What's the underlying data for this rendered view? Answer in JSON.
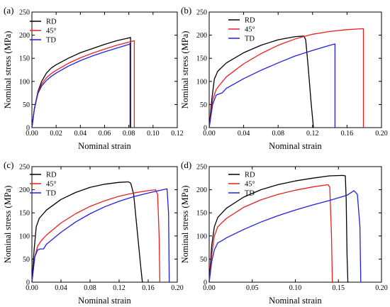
{
  "colors": {
    "RD": "#000000",
    "45°": "#e8201f",
    "TD": "#1f1fe8"
  },
  "chart_data": [
    {
      "panel": "(a)",
      "type": "line",
      "xlabel": "Nominal strain",
      "ylabel": "Nominal stress (MPa)",
      "xlim": [
        0,
        0.12
      ],
      "ylim": [
        0,
        250
      ],
      "xticks": [
        "0.00",
        "0.02",
        "0.04",
        "0.06",
        "0.08",
        "0.10",
        "0.12"
      ],
      "yticks": [
        "0",
        "50",
        "100",
        "150",
        "200",
        "250"
      ],
      "legend": "top-left",
      "series": [
        {
          "name": "RD",
          "color": "#000000",
          "x": [
            0,
            0.002,
            0.005,
            0.008,
            0.012,
            0.016,
            0.02,
            0.03,
            0.04,
            0.05,
            0.06,
            0.07,
            0.08,
            0.0815,
            0.0815
          ],
          "y": [
            0,
            40,
            78,
            100,
            118,
            129,
            136,
            150,
            162,
            171,
            180,
            188,
            194,
            195,
            0
          ]
        },
        {
          "name": "45°",
          "color": "#e8201f",
          "x": [
            0,
            0.002,
            0.005,
            0.008,
            0.012,
            0.016,
            0.02,
            0.03,
            0.04,
            0.05,
            0.06,
            0.07,
            0.08,
            0.0845,
            0.0845
          ],
          "y": [
            0,
            40,
            76,
            94,
            108,
            117,
            124,
            139,
            151,
            161,
            170,
            178,
            185,
            188,
            0
          ]
        },
        {
          "name": "TD",
          "color": "#1f1fe8",
          "x": [
            0,
            0.002,
            0.005,
            0.008,
            0.012,
            0.016,
            0.02,
            0.03,
            0.04,
            0.05,
            0.06,
            0.07,
            0.08,
            0.081,
            0.081
          ],
          "y": [
            0,
            40,
            74,
            90,
            102,
            111,
            118,
            133,
            145,
            155,
            164,
            172,
            180,
            182,
            0
          ]
        }
      ]
    },
    {
      "panel": "(b)",
      "type": "line",
      "xlabel": "Nominal strain",
      "ylabel": "Nominal stress (MPa)",
      "xlim": [
        0,
        0.2
      ],
      "ylim": [
        0,
        250
      ],
      "xticks": [
        "0.00",
        "0.04",
        "0.08",
        "0.12",
        "0.16",
        "0.20"
      ],
      "yticks": [
        "0",
        "50",
        "100",
        "150",
        "200",
        "250"
      ],
      "legend": "top-right",
      "series": [
        {
          "name": "RD",
          "color": "#000000",
          "x": [
            0,
            0.003,
            0.006,
            0.01,
            0.02,
            0.04,
            0.06,
            0.08,
            0.1,
            0.11,
            0.112,
            0.115,
            0.118,
            0.12,
            0.121
          ],
          "y": [
            0,
            60,
            105,
            122,
            140,
            162,
            178,
            190,
            197,
            198,
            190,
            130,
            60,
            20,
            0
          ]
        },
        {
          "name": "45°",
          "color": "#e8201f",
          "x": [
            0,
            0.004,
            0.008,
            0.012,
            0.02,
            0.04,
            0.06,
            0.08,
            0.1,
            0.12,
            0.14,
            0.16,
            0.178,
            0.179,
            0.179
          ],
          "y": [
            0,
            60,
            82,
            92,
            110,
            138,
            160,
            178,
            192,
            202,
            208,
            212,
            214,
            214,
            0
          ]
        },
        {
          "name": "TD",
          "color": "#1f1fe8",
          "x": [
            0,
            0.004,
            0.008,
            0.01,
            0.015,
            0.02,
            0.04,
            0.06,
            0.08,
            0.1,
            0.12,
            0.14,
            0.146,
            0.146
          ],
          "y": [
            0,
            50,
            70,
            72,
            75,
            85,
            106,
            124,
            140,
            155,
            167,
            178,
            181,
            0
          ]
        }
      ]
    },
    {
      "panel": "(c)",
      "type": "line",
      "xlabel": "Nominal strain",
      "ylabel": "Nominal stress (MPa)",
      "xlim": [
        0,
        0.2
      ],
      "ylim": [
        0,
        250
      ],
      "xticks": [
        "0.00",
        "0.04",
        "0.08",
        "0.12",
        "0.16",
        "0.20"
      ],
      "yticks": [
        "0",
        "50",
        "100",
        "150",
        "200",
        "250"
      ],
      "legend": "top-left",
      "series": [
        {
          "name": "RD",
          "color": "#000000",
          "x": [
            0,
            0.003,
            0.006,
            0.01,
            0.02,
            0.04,
            0.06,
            0.08,
            0.1,
            0.12,
            0.133,
            0.136,
            0.14,
            0.145,
            0.15,
            0.152
          ],
          "y": [
            0,
            70,
            120,
            138,
            156,
            179,
            194,
            205,
            212,
            216,
            217,
            214,
            190,
            110,
            30,
            0
          ]
        },
        {
          "name": "45°",
          "color": "#e8201f",
          "x": [
            0,
            0.004,
            0.008,
            0.012,
            0.02,
            0.04,
            0.06,
            0.08,
            0.1,
            0.12,
            0.14,
            0.16,
            0.17,
            0.173,
            0.175,
            0.176
          ],
          "y": [
            0,
            55,
            78,
            88,
            102,
            128,
            148,
            164,
            176,
            186,
            193,
            198,
            200,
            190,
            100,
            0
          ]
        },
        {
          "name": "TD",
          "color": "#1f1fe8",
          "x": [
            0,
            0.004,
            0.008,
            0.012,
            0.016,
            0.02,
            0.04,
            0.06,
            0.08,
            0.1,
            0.12,
            0.14,
            0.16,
            0.18,
            0.186,
            0.188,
            0.189
          ],
          "y": [
            0,
            55,
            70,
            72,
            72,
            82,
            108,
            130,
            148,
            163,
            175,
            185,
            193,
            200,
            202,
            150,
            0
          ]
        }
      ]
    },
    {
      "panel": "(d)",
      "type": "line",
      "xlabel": "Nominal strain",
      "ylabel": "Nominal stress (MPa)",
      "xlim": [
        0,
        0.2
      ],
      "ylim": [
        0,
        250
      ],
      "xticks": [
        "0.00",
        "0.05",
        "0.10",
        "0.15",
        "0.20"
      ],
      "yticks": [
        "0",
        "50",
        "100",
        "150",
        "200",
        "250"
      ],
      "legend": "top-left",
      "series": [
        {
          "name": "RD",
          "color": "#000000",
          "x": [
            0,
            0.003,
            0.006,
            0.01,
            0.02,
            0.04,
            0.06,
            0.08,
            0.1,
            0.12,
            0.14,
            0.155,
            0.158,
            0.159,
            0.16,
            0.161
          ],
          "y": [
            0,
            80,
            120,
            140,
            160,
            184,
            200,
            211,
            219,
            225,
            230,
            231,
            230,
            180,
            60,
            0
          ]
        },
        {
          "name": "45°",
          "color": "#e8201f",
          "x": [
            0,
            0.003,
            0.006,
            0.01,
            0.02,
            0.04,
            0.06,
            0.08,
            0.1,
            0.12,
            0.138,
            0.14,
            0.142,
            0.143
          ],
          "y": [
            0,
            60,
            100,
            120,
            138,
            162,
            178,
            190,
            199,
            206,
            211,
            205,
            100,
            0
          ]
        },
        {
          "name": "TD",
          "color": "#1f1fe8",
          "x": [
            0,
            0.003,
            0.006,
            0.01,
            0.015,
            0.02,
            0.04,
            0.06,
            0.08,
            0.1,
            0.12,
            0.14,
            0.16,
            0.168,
            0.172,
            0.175,
            0.176
          ],
          "y": [
            0,
            45,
            70,
            85,
            90,
            96,
            114,
            130,
            144,
            156,
            167,
            177,
            188,
            198,
            190,
            120,
            0
          ]
        }
      ]
    }
  ]
}
